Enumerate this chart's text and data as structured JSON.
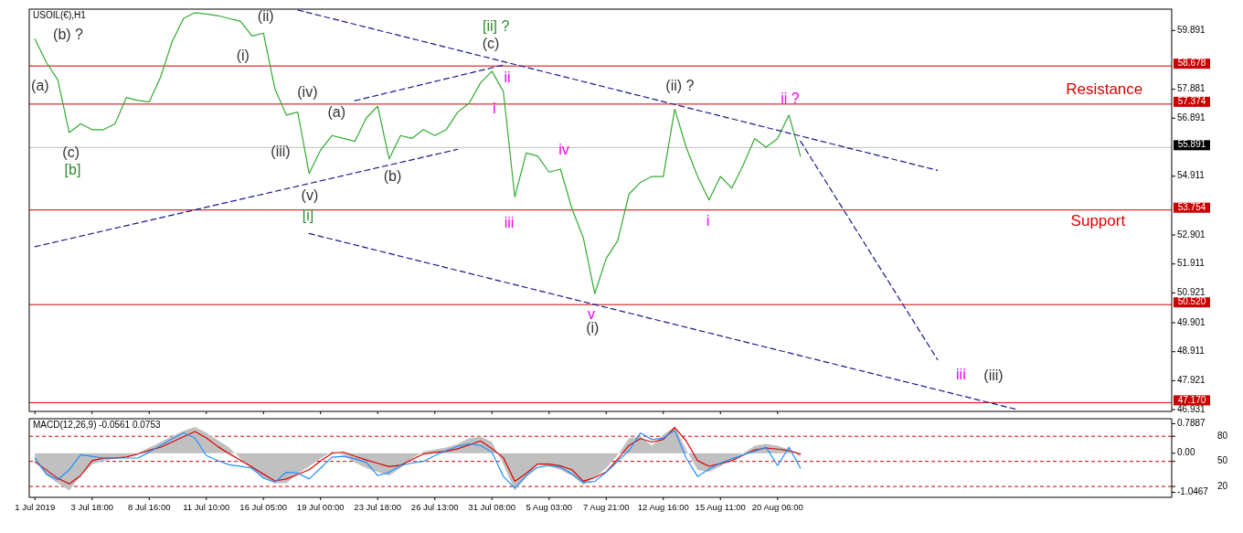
{
  "chart_data": [
    {
      "type": "line",
      "title": "USOIL(€),H1",
      "tick_labels": "y",
      "ylim": [
        46.87,
        60.62
      ],
      "yticks": [
        59.891,
        57.881,
        56.891,
        54.911,
        52.901,
        51.911,
        50.921,
        49.901,
        48.911,
        47.921,
        46.931
      ],
      "series": [
        {
          "type": "line",
          "color": "#33aa33",
          "values": [
            59.6,
            58.8,
            58.2,
            56.4,
            56.7,
            56.5,
            56.5,
            56.7,
            57.6,
            57.5,
            57.45,
            58.3,
            59.5,
            60.3,
            60.5,
            60.45,
            60.4,
            60.3,
            60.2,
            59.7,
            59.8,
            57.9,
            57.0,
            57.1,
            55.0,
            55.8,
            56.3,
            56.2,
            56.1,
            56.9,
            57.3,
            55.5,
            56.3,
            56.2,
            56.5,
            56.3,
            56.5,
            57.1,
            57.4,
            58.1,
            58.5,
            57.8,
            54.2,
            55.7,
            55.6,
            55.05,
            55.15,
            53.8,
            52.8,
            50.9,
            52.1,
            52.7,
            54.3,
            54.7,
            54.9,
            54.9,
            57.2,
            55.9,
            54.9,
            54.1,
            54.9,
            54.5,
            55.3,
            56.2,
            55.9,
            56.2,
            57.0,
            55.6,
            null,
            null,
            null,
            null,
            null,
            null,
            null,
            null,
            null,
            null,
            null,
            null,
            null,
            null,
            null,
            null,
            null,
            null,
            null,
            null,
            null,
            null,
            null,
            null,
            null,
            null,
            null,
            null,
            null,
            null,
            null,
            null
          ]
        },
        {
          "type": "line",
          "color": "#1a1a8c",
          "line_style": "dashed",
          "values": [
            null,
            null,
            null,
            null,
            null,
            null,
            null,
            null,
            null,
            null,
            null,
            null,
            null,
            null,
            null,
            null,
            null,
            null,
            null,
            null,
            null,
            null,
            null,
            60.59,
            null,
            null,
            null,
            null,
            null,
            null,
            null,
            null,
            null,
            null,
            null,
            null,
            null,
            null,
            null,
            null,
            null,
            null,
            null,
            null,
            null,
            null,
            null,
            null,
            null,
            null,
            null,
            null,
            null,
            null,
            null,
            null,
            null,
            null,
            null,
            null,
            null,
            null,
            null,
            null,
            null,
            null,
            null,
            null,
            null,
            null,
            null,
            null,
            null,
            null,
            null,
            null,
            null,
            null,
            null,
            55.11,
            null,
            null,
            null,
            null,
            null,
            null,
            null,
            null,
            null,
            null,
            null,
            null,
            null,
            null,
            null,
            null,
            null,
            null,
            null,
            null
          ]
        },
        {
          "type": "line",
          "color": "#1a1a8c",
          "line_style": "dashed",
          "values": [
            null,
            null,
            null,
            null,
            null,
            null,
            null,
            null,
            null,
            null,
            null,
            null,
            null,
            null,
            null,
            null,
            null,
            null,
            null,
            null,
            null,
            null,
            null,
            null,
            52.95,
            null,
            null,
            null,
            null,
            null,
            null,
            null,
            null,
            null,
            null,
            null,
            null,
            null,
            null,
            null,
            null,
            null,
            null,
            null,
            null,
            null,
            null,
            null,
            null,
            null,
            null,
            null,
            null,
            null,
            null,
            null,
            null,
            null,
            null,
            null,
            null,
            null,
            null,
            null,
            null,
            null,
            null,
            null,
            null,
            null,
            null,
            null,
            null,
            null,
            null,
            null,
            null,
            null,
            null,
            null,
            null,
            null,
            null,
            null,
            null,
            null,
            46.93,
            null,
            null,
            null,
            null,
            null,
            null,
            null,
            null,
            null,
            null,
            null,
            null,
            null
          ]
        },
        {
          "type": "line",
          "color": "#1a1a8c",
          "line_style": "dashed",
          "values": [
            null,
            null,
            null,
            null,
            null,
            null,
            null,
            null,
            null,
            null,
            null,
            null,
            null,
            null,
            null,
            null,
            null,
            null,
            null,
            null,
            null,
            null,
            null,
            null,
            null,
            null,
            null,
            null,
            57.49,
            null,
            null,
            null,
            null,
            null,
            null,
            null,
            null,
            null,
            null,
            null,
            null,
            58.71,
            null,
            null,
            null,
            null,
            null,
            null,
            null,
            null,
            null,
            null,
            null,
            null,
            null,
            null,
            null,
            null,
            null,
            null,
            null,
            null,
            null,
            null,
            null,
            null,
            null,
            null,
            null,
            null,
            null,
            null,
            null,
            null,
            null,
            null,
            null,
            null,
            null,
            null,
            null,
            null,
            null,
            null,
            null,
            null,
            null,
            null,
            null,
            null,
            null,
            null,
            null,
            null,
            null,
            null,
            null,
            null,
            null,
            null
          ]
        },
        {
          "type": "line",
          "color": "#1a1a8c",
          "line_style": "dashed",
          "values": [
            52.5,
            null,
            null,
            null,
            null,
            null,
            null,
            null,
            null,
            null,
            null,
            null,
            null,
            null,
            null,
            null,
            null,
            null,
            null,
            null,
            null,
            null,
            null,
            null,
            null,
            null,
            null,
            null,
            null,
            null,
            null,
            null,
            null,
            null,
            null,
            null,
            null,
            55.83,
            null,
            null,
            null,
            null,
            null,
            null,
            null,
            null,
            null,
            null,
            null,
            null,
            null,
            null,
            null,
            null,
            null,
            null,
            null,
            null,
            null,
            null,
            null,
            null,
            null,
            null,
            null,
            null,
            null,
            null,
            null,
            null,
            null,
            null,
            null,
            null,
            null,
            null,
            null,
            null,
            null,
            null,
            null,
            null,
            null,
            null,
            null,
            null,
            null,
            null,
            null,
            null,
            null,
            null,
            null,
            null,
            null,
            null,
            null,
            null,
            null,
            null
          ]
        },
        {
          "type": "line",
          "color": "#1a1a8c",
          "line_style": "dashed",
          "values": [
            null,
            null,
            null,
            null,
            null,
            null,
            null,
            null,
            null,
            null,
            null,
            null,
            null,
            null,
            null,
            null,
            null,
            null,
            null,
            null,
            null,
            null,
            null,
            null,
            null,
            null,
            null,
            null,
            null,
            null,
            null,
            null,
            null,
            null,
            null,
            null,
            null,
            null,
            null,
            null,
            null,
            null,
            null,
            null,
            null,
            null,
            null,
            null,
            null,
            null,
            null,
            null,
            null,
            null,
            null,
            null,
            null,
            null,
            null,
            null,
            null,
            null,
            null,
            null,
            null,
            null,
            null,
            56.11,
            null,
            null,
            null,
            null,
            null,
            null,
            null,
            null,
            null,
            null,
            null,
            48.64,
            null,
            null,
            null,
            null,
            null,
            null,
            null,
            null,
            null,
            null,
            null,
            null,
            null,
            null,
            null,
            null,
            null,
            null,
            null,
            null
          ]
        }
      ],
      "ref_lines": [
        {
          "axis": "y",
          "value": 58.678,
          "label": "58.678",
          "color": "#cc0000"
        },
        {
          "axis": "y",
          "value": 57.374,
          "label": "57.374",
          "color": "#cc0000"
        },
        {
          "axis": "y",
          "value": 55.891,
          "label": "55.891",
          "color": "#c0c0c0"
        },
        {
          "axis": "y",
          "value": 53.754,
          "label": "53.754",
          "color": "#cc0000"
        },
        {
          "axis": "y",
          "value": 50.52,
          "label": "50.520",
          "color": "#cc0000"
        },
        {
          "axis": "y",
          "value": 47.17,
          "label": "47.170",
          "color": "#cc0000"
        }
      ],
      "annotations": [
        "(b) ?",
        "(a)",
        "(c)",
        "[b]",
        "(i)",
        "(ii)",
        "(iv)",
        "(iii)",
        "(v)",
        "[i]",
        "(a)",
        "(b)",
        "[ii] ?",
        "(c)",
        "ii",
        "i",
        "iii",
        "iv",
        "v",
        "(i)",
        "(ii) ?",
        "i",
        "ii ?",
        "iii",
        "(iii)",
        "Resistance",
        "Support"
      ]
    },
    {
      "type": "line",
      "title": "MACD(12,26,9) -0.0561 0.0753",
      "categories": [
        "1 Jul 2019",
        null,
        null,
        null,
        null,
        "3 Jul 18:00",
        null,
        null,
        null,
        null,
        "8 Jul 16:00",
        null,
        null,
        null,
        null,
        "11 Jul 10:00",
        null,
        null,
        null,
        null,
        "16 Jul 05:00",
        null,
        null,
        null,
        null,
        "19 Jul 00:00",
        null,
        null,
        null,
        null,
        "23 Jul 18:00",
        null,
        null,
        null,
        null,
        "26 Jul 13:00",
        null,
        null,
        null,
        null,
        "31 Jul 08:00",
        null,
        null,
        null,
        null,
        "5 Aug 03:00",
        null,
        null,
        null,
        null,
        "7 Aug 21:00",
        null,
        null,
        null,
        null,
        "12 Aug 16:00",
        null,
        null,
        null,
        null,
        "15 Aug 11:00",
        null,
        null,
        null,
        null,
        "20 Aug 06:00",
        null,
        null,
        null,
        null,
        null,
        null,
        null,
        null,
        null,
        null,
        null,
        null,
        null,
        null,
        null,
        null,
        null,
        null,
        null,
        null,
        null,
        null,
        null,
        null,
        null,
        null,
        null,
        null,
        null,
        null,
        null,
        null,
        null,
        null
      ],
      "ylim": [
        -1.181,
        0.923
      ],
      "yticks": [
        0.7887,
        {
          "value": 0,
          "label": "0.00"
        },
        -1.0467
      ],
      "y2lim": [
        7,
        101
      ],
      "y2ticks": [
        80,
        50,
        20
      ],
      "series": [
        {
          "type": "area",
          "color": "#c0c0c0",
          "values": [
            -0.2,
            -0.6,
            -0.8,
            -1.0,
            -0.6,
            -0.3,
            -0.2,
            -0.15,
            -0.1,
            0.0,
            0.15,
            0.3,
            0.45,
            0.6,
            0.7,
            0.55,
            0.35,
            0.15,
            -0.15,
            -0.45,
            -0.65,
            -0.8,
            -0.8,
            -0.55,
            -0.35,
            -0.15,
            0.05,
            -0.05,
            -0.25,
            -0.4,
            -0.5,
            -0.6,
            -0.4,
            -0.15,
            0.05,
            0.1,
            0.15,
            0.25,
            0.4,
            0.45,
            0.3,
            -0.3,
            -1.0,
            -0.65,
            -0.3,
            -0.35,
            -0.45,
            -0.6,
            -0.85,
            -0.65,
            -0.4,
            -0.05,
            0.4,
            0.45,
            0.2,
            0.5,
            0.7,
            0.1,
            -0.45,
            -0.5,
            -0.35,
            -0.15,
            0.0,
            0.2,
            0.25,
            0.2,
            0.1,
            -0.1,
            null,
            null,
            null,
            null,
            null,
            null,
            null,
            null,
            null,
            null,
            null,
            null,
            null,
            null,
            null,
            null,
            null,
            null,
            null,
            null,
            null,
            null,
            null,
            null,
            null,
            null,
            null,
            null,
            null,
            null,
            null,
            null
          ]
        },
        {
          "type": "line",
          "color": "#dd0000",
          "values": [
            -0.23,
            -0.45,
            -0.67,
            -0.82,
            -0.6,
            -0.2,
            -0.13,
            -0.13,
            -0.1,
            -0.02,
            0.08,
            0.16,
            0.3,
            0.44,
            0.58,
            0.41,
            0.18,
            -0.01,
            -0.19,
            -0.37,
            -0.56,
            -0.74,
            -0.69,
            -0.57,
            -0.44,
            -0.21,
            0.0,
            0.03,
            -0.08,
            -0.18,
            -0.27,
            -0.36,
            -0.32,
            -0.17,
            -0.02,
            0.02,
            0.05,
            0.12,
            0.22,
            0.33,
            0.12,
            -0.12,
            -0.75,
            -0.54,
            -0.29,
            -0.29,
            -0.34,
            -0.44,
            -0.75,
            -0.65,
            -0.5,
            -0.16,
            0.21,
            0.39,
            0.3,
            0.37,
            0.69,
            0.33,
            -0.2,
            -0.35,
            -0.28,
            -0.2,
            -0.05,
            0.09,
            0.14,
            0.11,
            0.07,
            -0.02,
            null,
            null,
            null,
            null,
            null,
            null,
            null,
            null,
            null,
            null,
            null,
            null,
            null,
            null,
            null,
            null,
            null,
            null,
            null,
            null,
            null,
            null,
            null,
            null,
            null,
            null,
            null,
            null,
            null,
            null,
            null,
            null
          ]
        },
        {
          "type": "line",
          "color": "#1e90ff",
          "axis": "y2",
          "values": [
            54,
            35,
            28,
            40,
            58,
            56,
            54,
            54,
            54,
            54,
            61,
            69,
            77,
            84,
            78,
            57,
            51,
            46,
            44,
            42,
            30,
            25,
            37,
            36,
            29,
            42,
            55,
            56,
            53,
            49,
            33,
            37,
            45,
            48,
            50,
            57,
            63,
            68,
            71,
            69,
            61,
            32,
            18,
            33,
            43,
            45,
            43,
            35,
            25,
            26,
            37,
            50,
            63,
            84,
            76,
            78,
            87,
            54,
            32,
            41,
            48,
            53,
            58,
            62,
            67,
            45,
            67,
            42,
            null,
            null,
            null,
            null,
            null,
            null,
            null,
            null,
            null,
            null,
            null,
            null,
            null,
            null,
            null,
            null,
            null,
            null,
            null,
            null,
            null,
            null,
            null,
            null,
            null,
            null,
            null,
            null,
            null,
            null,
            null,
            null
          ]
        }
      ],
      "ref_lines": [
        {
          "axis": "y2",
          "value": 80,
          "color": "#cc0000",
          "line_style": "dashed"
        },
        {
          "axis": "y2",
          "value": 50,
          "color": "#cc0000",
          "line_style": "dashed"
        },
        {
          "axis": "y2",
          "value": 20,
          "color": "#cc0000",
          "line_style": "dashed"
        }
      ]
    }
  ]
}
